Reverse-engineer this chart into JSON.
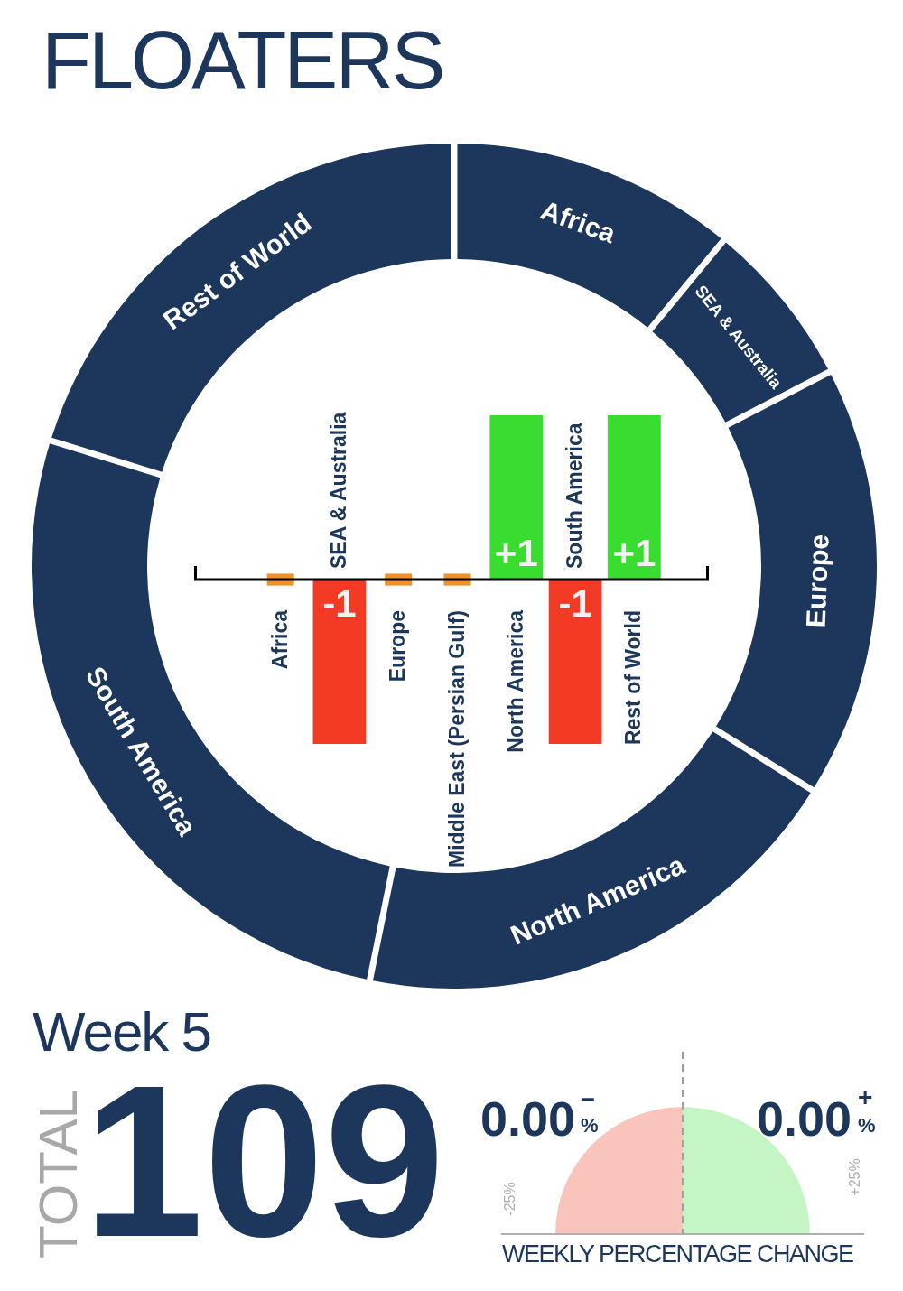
{
  "chart_data": [
    {
      "type": "donut",
      "title": "FLOATERS",
      "categories": [
        "Africa",
        "SEA & Australia",
        "Europe",
        "North America",
        "South America",
        "Rest of World"
      ],
      "values": [
        11.0,
        6.4,
        16.5,
        19.3,
        26.6,
        20.2
      ],
      "colors": [
        "#1c365c",
        "#1c365c",
        "#1c365c",
        "#1c365c",
        "#1c365c",
        "#1c365c"
      ]
    },
    {
      "type": "bar",
      "categories": [
        "Africa",
        "SEA & Australia",
        "Europe",
        "Middle East (Persian Gulf)",
        "North America",
        "South America",
        "Rest of World"
      ],
      "series": [
        {
          "type": "bar",
          "values": [
            null,
            -1,
            null,
            null,
            1,
            -1,
            1
          ],
          "colors": [
            "#f0922a",
            "#f33a24",
            "#f0922a",
            "#f0922a",
            "#38dd30",
            "#f33a24",
            "#38dd30"
          ],
          "value_labels": [
            null,
            "-1",
            null,
            null,
            "+1",
            "-1",
            "+1"
          ]
        },
        {
          "type": "scatter",
          "x": [
            "Africa",
            "Europe",
            "Middle East (Persian Gulf)"
          ],
          "values": [
            0,
            0,
            0
          ],
          "color": "#f0922a",
          "marker": "square"
        }
      ]
    },
    {
      "type": "other",
      "title": "Week 5",
      "ylabel": "TOTAL",
      "annotations": [
        "109"
      ]
    },
    {
      "type": "other",
      "xlabel": "WEEKLY PERCENTAGE CHANGE",
      "colors": [
        "#f9c4bc",
        "#c5f5c5"
      ],
      "annotations": [
        "0.00",
        "–",
        "%",
        "0.00",
        "+",
        "%",
        "-25%",
        "+25%"
      ]
    }
  ]
}
